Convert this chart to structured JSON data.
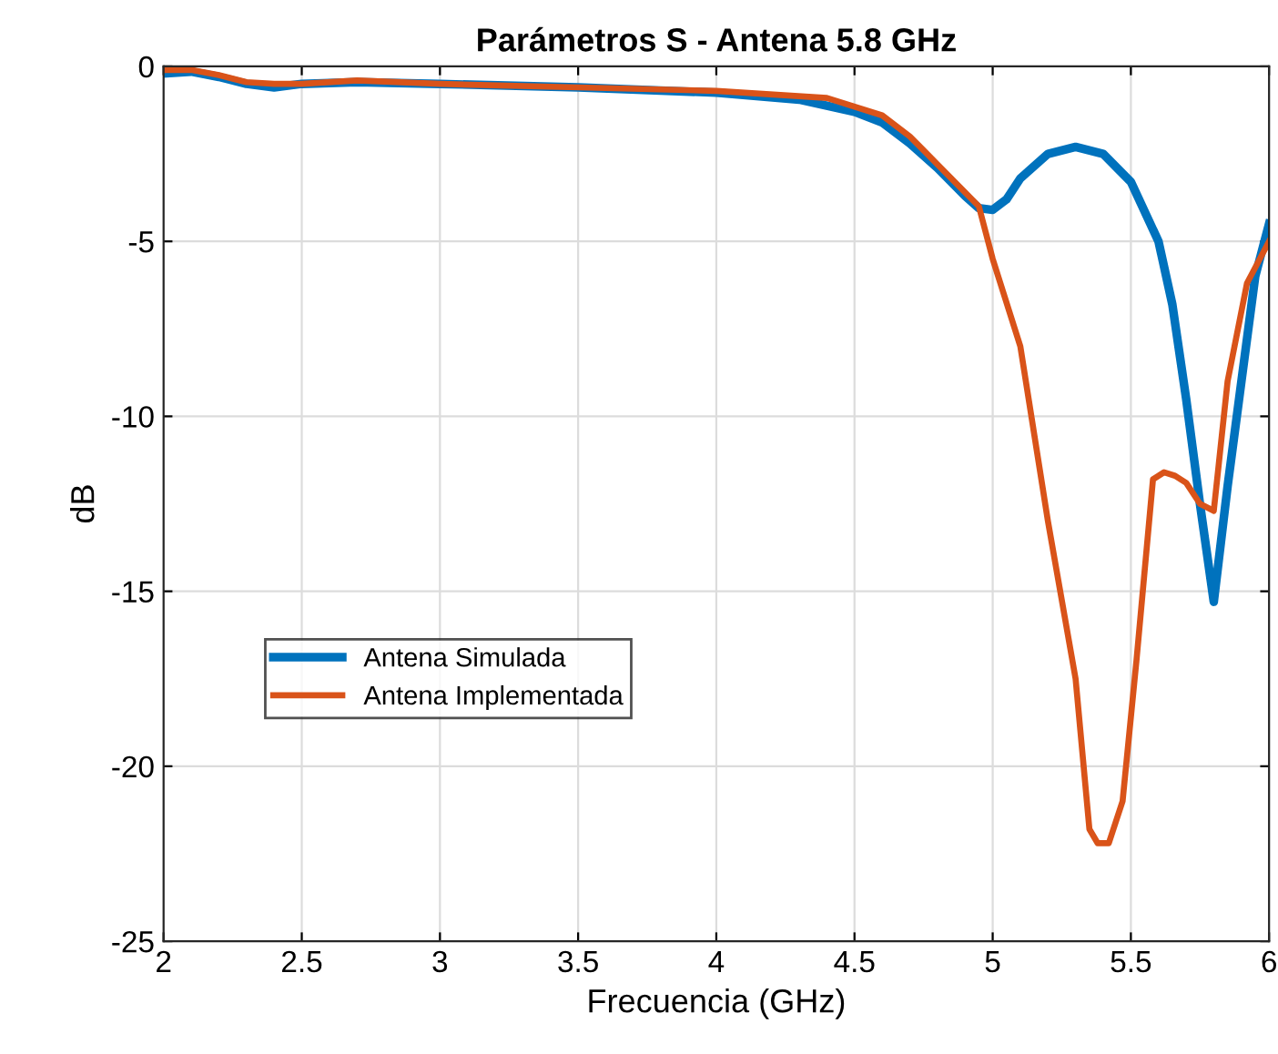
{
  "chart_data": {
    "type": "line",
    "title": "Parámetros S - Antena 5.8 GHz",
    "xlabel": "Frecuencia (GHz)",
    "ylabel": "dB",
    "xlim": [
      2,
      6
    ],
    "ylim": [
      -25,
      0
    ],
    "xticks": [
      2,
      2.5,
      3,
      3.5,
      4,
      4.5,
      5,
      5.5,
      6
    ],
    "yticks": [
      -25,
      -20,
      -15,
      -10,
      -5,
      0
    ],
    "grid": true,
    "legend": "bottom left",
    "marker": "none",
    "line_style": "solid",
    "series": [
      {
        "name": "Antena Simulada",
        "color": "#0072bd",
        "x": [
          2,
          2.1,
          2.2,
          2.3,
          2.4,
          2.5,
          2.7,
          3,
          3.5,
          4,
          4.3,
          4.5,
          4.6,
          4.7,
          4.8,
          4.9,
          4.95,
          5.0,
          5.05,
          5.1,
          5.2,
          5.3,
          5.4,
          5.5,
          5.6,
          5.65,
          5.7,
          5.75,
          5.8,
          5.85,
          5.9,
          5.95,
          6
        ],
        "values": [
          -0.2,
          -0.15,
          -0.3,
          -0.5,
          -0.6,
          -0.5,
          -0.45,
          -0.5,
          -0.6,
          -0.75,
          -0.95,
          -1.3,
          -1.6,
          -2.2,
          -2.9,
          -3.7,
          -4.05,
          -4.1,
          -3.8,
          -3.2,
          -2.5,
          -2.3,
          -2.5,
          -3.3,
          -5.0,
          -6.8,
          -9.5,
          -12.5,
          -15.3,
          -12,
          -9,
          -6,
          -4.5
        ]
      },
      {
        "name": "Antena Implementada",
        "color": "#d95319",
        "x": [
          2,
          2.1,
          2.2,
          2.3,
          2.4,
          2.5,
          2.7,
          3,
          3.5,
          4,
          4.4,
          4.6,
          4.7,
          4.8,
          4.9,
          4.95,
          5.0,
          5.1,
          5.2,
          5.3,
          5.35,
          5.38,
          5.42,
          5.47,
          5.52,
          5.58,
          5.62,
          5.66,
          5.7,
          5.75,
          5.8,
          5.85,
          5.92,
          6
        ],
        "values": [
          -0.1,
          -0.1,
          -0.25,
          -0.45,
          -0.5,
          -0.5,
          -0.4,
          -0.5,
          -0.6,
          -0.7,
          -0.9,
          -1.4,
          -2.0,
          -2.8,
          -3.6,
          -4.0,
          -5.5,
          -8,
          -13,
          -17.5,
          -21.8,
          -22.2,
          -22.2,
          -21,
          -17,
          -11.8,
          -11.6,
          -11.7,
          -11.9,
          -12.5,
          -12.7,
          -9,
          -6.2,
          -5
        ]
      }
    ]
  }
}
